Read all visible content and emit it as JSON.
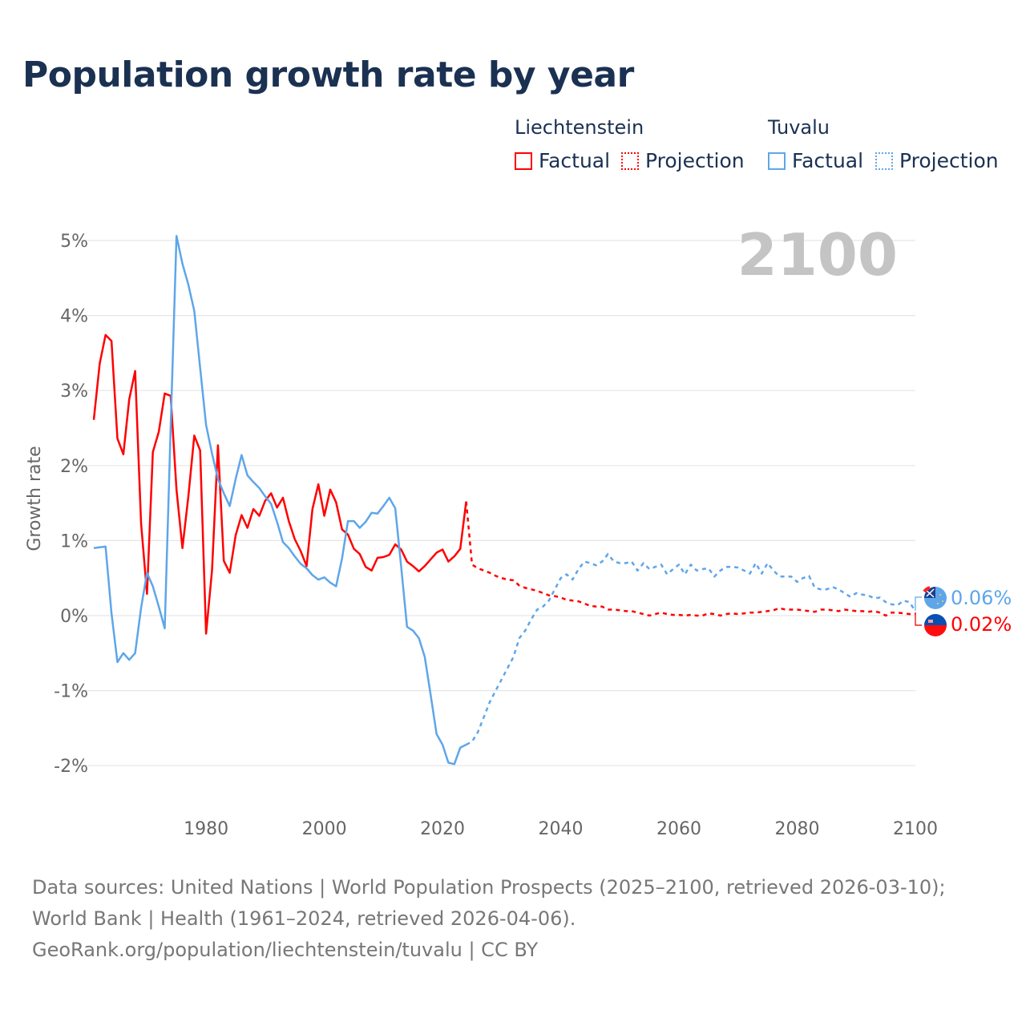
{
  "title": "Population growth rate by year",
  "legend": {
    "groups": [
      {
        "name": "Liechtenstein",
        "color": "#ff0000",
        "factual": "Factual",
        "projection": "Projection"
      },
      {
        "name": "Tuvalu",
        "color": "#5ea6ea",
        "factual": "Factual",
        "projection": "Projection"
      }
    ]
  },
  "year_watermark": "2100",
  "end_labels": {
    "tuvalu": "0.06%",
    "liechtenstein": "0.02%"
  },
  "footer": {
    "sources": "Data sources: United Nations | World Population Prospects (2025–2100, retrieved 2026-03-10); World Bank | Health (1961–2024, retrieved 2026-04-06).",
    "credit": "GeoRank.org/population/liechtenstein/tuvalu | CC BY"
  },
  "chart_data": {
    "type": "line",
    "title": "Population growth rate by year",
    "xlabel": "",
    "ylabel": "Growth rate",
    "xlim": [
      1961,
      2100
    ],
    "ylim": [
      -2.3,
      5.2
    ],
    "x_ticks": [
      1980,
      2000,
      2020,
      2040,
      2060,
      2080,
      2100
    ],
    "x_tick_labels": [
      "1980",
      "2000",
      "2020",
      "2040",
      "2060",
      "2080",
      "2100"
    ],
    "y_ticks": [
      5,
      4,
      3,
      2,
      1,
      0,
      -1,
      -2
    ],
    "y_tick_labels": [
      "5%",
      "4%",
      "3%",
      "2%",
      "1%",
      "0%",
      "-1%",
      "-2%"
    ],
    "grid": true,
    "legend_position": "top-right",
    "series": [
      {
        "name": "Liechtenstein Factual",
        "color": "#ff0000",
        "dashed": false,
        "start_year": 1961,
        "values": [
          2.61,
          3.36,
          3.74,
          3.66,
          2.36,
          2.15,
          2.88,
          3.26,
          1.23,
          0.29,
          2.18,
          2.45,
          2.96,
          2.93,
          1.68,
          0.9,
          1.59,
          2.4,
          2.2,
          -0.24,
          0.6,
          2.27,
          0.73,
          0.57,
          1.07,
          1.34,
          1.17,
          1.42,
          1.33,
          1.53,
          1.63,
          1.44,
          1.57,
          1.26,
          1.02,
          0.86,
          0.66,
          1.42,
          1.75,
          1.33,
          1.68,
          1.51,
          1.15,
          1.08,
          0.89,
          0.82,
          0.65,
          0.6,
          0.77,
          0.78,
          0.81,
          0.95,
          0.88,
          0.72,
          0.66,
          0.59,
          0.66,
          0.75,
          0.84,
          0.88,
          0.72,
          0.79,
          0.89,
          1.52
        ]
      },
      {
        "name": "Liechtenstein Projection",
        "color": "#ff0000",
        "dashed": true,
        "start_year": 2024,
        "values": [
          1.52,
          0.68,
          0.63,
          0.6,
          0.57,
          0.53,
          0.5,
          0.48,
          0.47,
          0.4,
          0.37,
          0.35,
          0.33,
          0.3,
          0.27,
          0.26,
          0.24,
          0.21,
          0.2,
          0.19,
          0.16,
          0.13,
          0.12,
          0.12,
          0.08,
          0.08,
          0.07,
          0.06,
          0.06,
          0.04,
          0.02,
          0.0,
          0.02,
          0.04,
          0.02,
          0.01,
          0.01,
          0.0,
          0.01,
          0.0,
          0.0,
          0.03,
          0.02,
          0.0,
          0.02,
          0.03,
          0.02,
          0.03,
          0.04,
          0.04,
          0.05,
          0.06,
          0.07,
          0.1,
          0.08,
          0.08,
          0.08,
          0.07,
          0.06,
          0.05,
          0.08,
          0.08,
          0.07,
          0.06,
          0.08,
          0.07,
          0.06,
          0.06,
          0.05,
          0.06,
          0.04,
          0.0,
          0.04,
          0.04,
          0.03,
          0.02,
          0.02
        ]
      },
      {
        "name": "Tuvalu Factual",
        "color": "#5ea6ea",
        "dashed": false,
        "start_year": 1961,
        "values": [
          0.9,
          0.91,
          0.92,
          0.03,
          -0.62,
          -0.5,
          -0.59,
          -0.5,
          0.1,
          0.57,
          0.39,
          0.12,
          -0.17,
          2.5,
          5.06,
          4.69,
          4.41,
          4.06,
          3.3,
          2.54,
          2.16,
          1.82,
          1.63,
          1.46,
          1.82,
          2.14,
          1.87,
          1.78,
          1.7,
          1.59,
          1.49,
          1.25,
          0.98,
          0.9,
          0.79,
          0.69,
          0.63,
          0.54,
          0.48,
          0.51,
          0.44,
          0.39,
          0.76,
          1.26,
          1.26,
          1.17,
          1.25,
          1.37,
          1.36,
          1.46,
          1.57,
          1.43,
          0.65,
          -0.15,
          -0.2,
          -0.3,
          -0.55,
          -1.06,
          -1.58,
          -1.72,
          -1.96,
          -1.98,
          -1.76,
          -1.72
        ]
      },
      {
        "name": "Tuvalu Projection",
        "color": "#5ea6ea",
        "dashed": true,
        "start_year": 2024,
        "values": [
          -1.72,
          -1.68,
          -1.55,
          -1.35,
          -1.15,
          -1.0,
          -0.85,
          -0.7,
          -0.55,
          -0.3,
          -0.2,
          -0.05,
          0.08,
          0.12,
          0.2,
          0.35,
          0.5,
          0.55,
          0.48,
          0.62,
          0.72,
          0.7,
          0.67,
          0.72,
          0.82,
          0.72,
          0.7,
          0.7,
          0.72,
          0.6,
          0.7,
          0.62,
          0.65,
          0.68,
          0.55,
          0.62,
          0.68,
          0.55,
          0.68,
          0.6,
          0.62,
          0.63,
          0.52,
          0.6,
          0.65,
          0.65,
          0.64,
          0.6,
          0.56,
          0.7,
          0.56,
          0.7,
          0.6,
          0.52,
          0.52,
          0.52,
          0.45,
          0.5,
          0.53,
          0.37,
          0.35,
          0.35,
          0.38,
          0.35,
          0.3,
          0.25,
          0.3,
          0.28,
          0.27,
          0.23,
          0.24,
          0.18,
          0.15,
          0.14,
          0.2,
          0.18,
          0.06
        ]
      }
    ]
  }
}
